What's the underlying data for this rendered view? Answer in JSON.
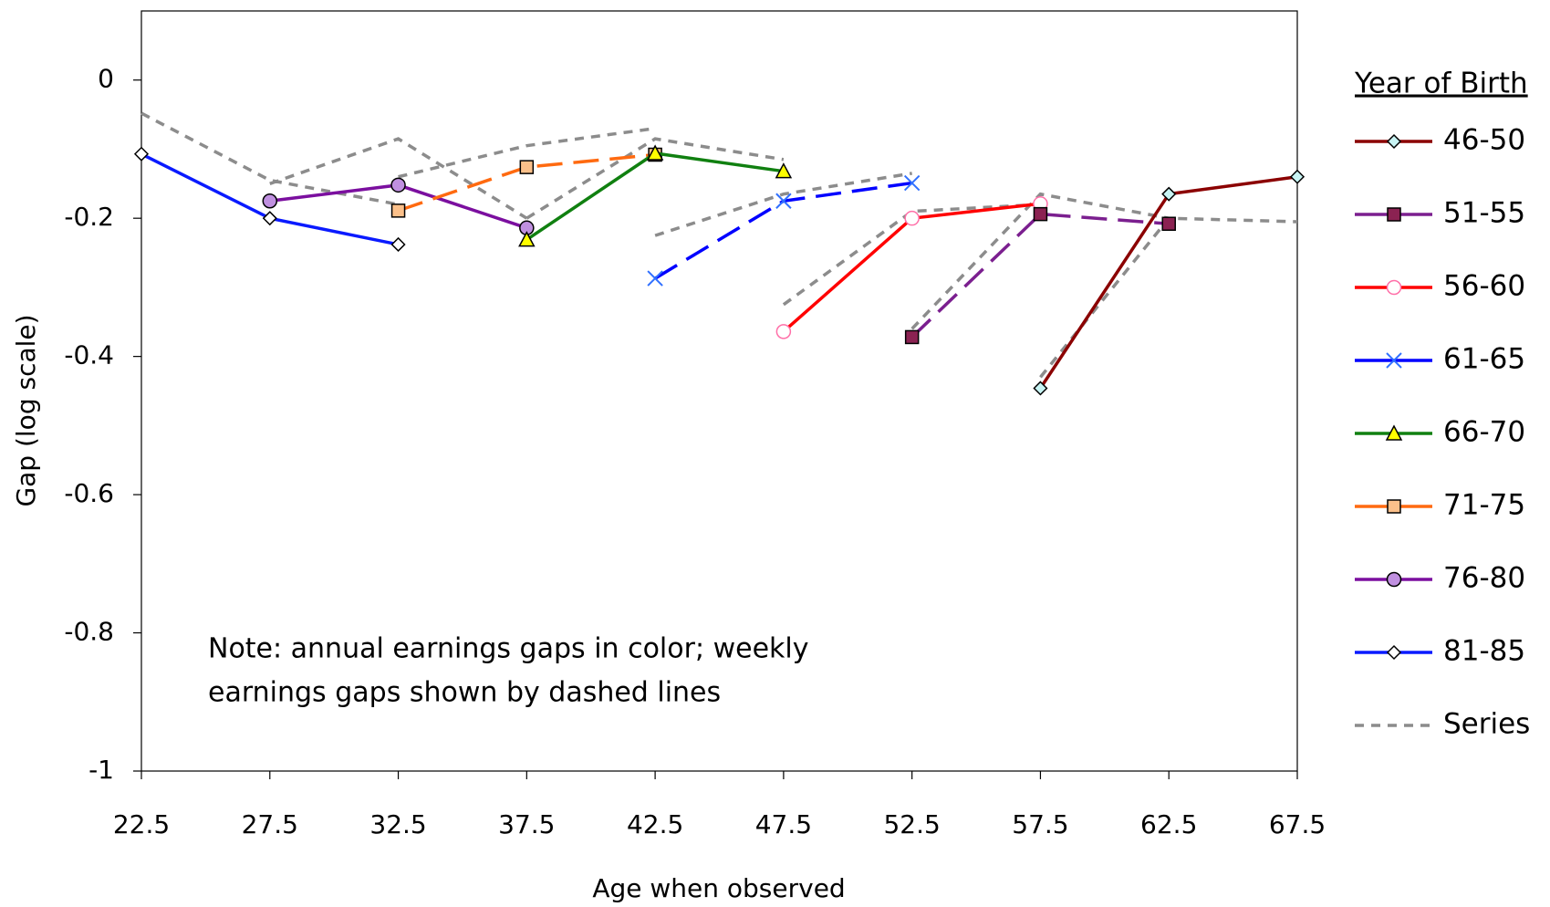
{
  "chart_data": {
    "type": "line",
    "x_label": "Age when observed",
    "y_label": "Gap (log scale)",
    "legend_title": "Year of Birth",
    "legend_position": "right",
    "annotation": [
      "Note: annual earnings gaps in color; weekly",
      "earnings gaps shown by dashed lines"
    ],
    "xlim": [
      22.5,
      67.5
    ],
    "xticks": [
      22.5,
      27.5,
      32.5,
      37.5,
      42.5,
      47.5,
      52.5,
      57.5,
      62.5,
      67.5
    ],
    "ylim": [
      -1,
      0.1
    ],
    "yticks": [
      -1,
      -0.8,
      -0.6,
      -0.4,
      -0.2,
      0
    ],
    "grid": false,
    "series": [
      {
        "name": "46-50",
        "color": "#8b0000",
        "line_style": "solid",
        "marker": "diamond",
        "marker_color": "#c8f4f4",
        "x": [
          57.5,
          62.5,
          67.5
        ],
        "values": [
          -0.446,
          -0.165,
          -0.14
        ]
      },
      {
        "name": "51-55",
        "color": "#7b1f8f",
        "line_style": "dashed",
        "marker": "square",
        "marker_color": "#8b2252",
        "x": [
          52.5,
          57.5,
          62.5
        ],
        "values": [
          -0.372,
          -0.194,
          -0.208
        ]
      },
      {
        "name": "56-60",
        "color": "#ff0000",
        "line_style": "solid",
        "marker": "circle",
        "marker_color": "#ffffff",
        "marker_edge": "#ff6fa8",
        "x": [
          47.5,
          52.5,
          57.5
        ],
        "values": [
          -0.364,
          -0.2,
          -0.179
        ]
      },
      {
        "name": "61-65",
        "color": "#0000ff",
        "line_style": "dashed",
        "marker": "x",
        "marker_color": "#3070ff",
        "x": [
          42.5,
          47.5,
          52.5
        ],
        "values": [
          -0.287,
          -0.175,
          -0.149
        ]
      },
      {
        "name": "66-70",
        "color": "#108010",
        "line_style": "solid",
        "marker": "triangle",
        "marker_color": "#ffff00",
        "x": [
          37.5,
          42.5,
          47.5
        ],
        "values": [
          -0.231,
          -0.106,
          -0.132
        ]
      },
      {
        "name": "71-75",
        "color": "#ff6a10",
        "line_style": "dashed",
        "marker": "square",
        "marker_color": "#fbc08a",
        "x": [
          32.5,
          37.5,
          42.5
        ],
        "values": [
          -0.189,
          -0.126,
          -0.108
        ]
      },
      {
        "name": "76-80",
        "color": "#7b0f9f",
        "line_style": "solid",
        "marker": "circle",
        "marker_color": "#c090e0",
        "x": [
          27.5,
          32.5,
          37.5
        ],
        "values": [
          -0.175,
          -0.152,
          -0.214
        ]
      },
      {
        "name": "81-85",
        "color": "#0a1aff",
        "line_style": "solid",
        "marker": "diamond",
        "marker_color": "#ffffff",
        "x": [
          22.5,
          27.5,
          32.5
        ],
        "values": [
          -0.107,
          -0.2,
          -0.238
        ]
      },
      {
        "name": "Series",
        "color": "#8c8c8c",
        "line_style": "dotted",
        "marker": "none",
        "x": [
          22.5,
          27.5,
          32.5,
          null,
          27.5,
          32.5,
          37.5,
          null,
          32.5,
          37.5,
          42.5,
          null,
          37.5,
          42.5,
          47.5,
          null,
          42.5,
          47.5,
          52.5,
          null,
          47.5,
          52.5,
          57.5,
          null,
          52.5,
          57.5,
          62.5,
          null,
          57.5,
          62.5,
          67.5
        ],
        "values": [
          -0.048,
          -0.145,
          -0.18,
          null,
          -0.15,
          -0.085,
          -0.2,
          null,
          -0.14,
          -0.095,
          -0.07,
          null,
          -0.2,
          -0.085,
          -0.115,
          null,
          -0.225,
          -0.165,
          -0.135,
          null,
          -0.325,
          -0.19,
          -0.18,
          null,
          -0.36,
          -0.165,
          -0.2,
          null,
          -0.43,
          -0.2,
          -0.205
        ]
      }
    ]
  }
}
